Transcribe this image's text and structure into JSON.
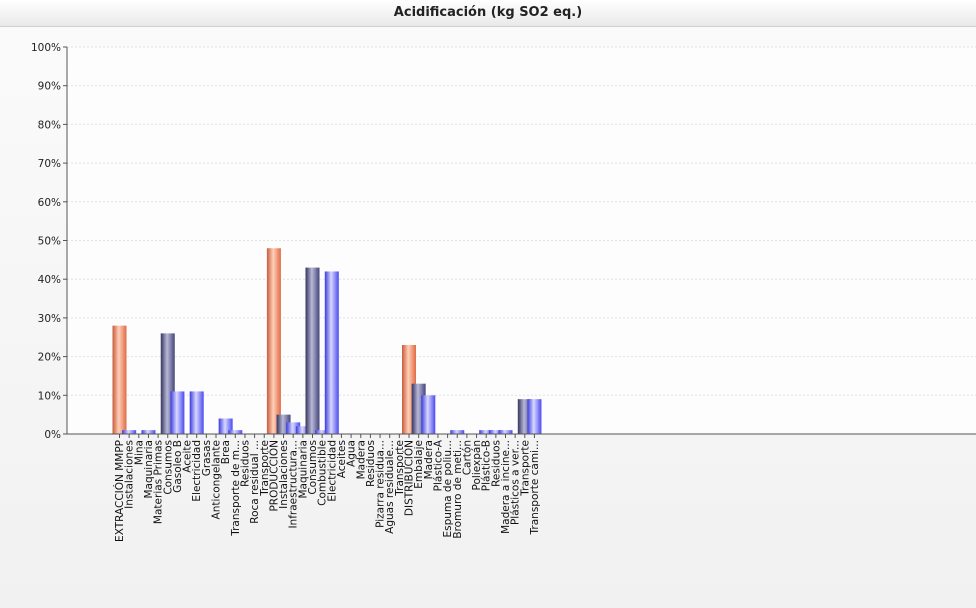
{
  "chart_data": {
    "type": "bar",
    "title": "Acidificación (kg SO2 eq.)",
    "xlabel": "",
    "ylabel": "",
    "ylim": [
      0,
      100
    ],
    "yticks": [
      "0%",
      "10%",
      "20%",
      "30%",
      "40%",
      "50%",
      "60%",
      "70%",
      "80%",
      "90%",
      "100%"
    ],
    "grid": true,
    "colors": {
      "phase": "#f08060",
      "process_dark": "#5a5a90",
      "process_blue": "#6a6af0"
    },
    "categories": [
      "EXTRACCIÓN MMPP",
      "Instalaciones",
      "Mina",
      "Maquinaria",
      "Materias Primas",
      "Consumos",
      "Gasoleo B",
      "Aceite",
      "Electricidad",
      "Grasas",
      "Anticongelante",
      "Brea",
      "Transporte de m...",
      "Residuos",
      "Roca residual ...",
      "Transporte",
      "PRODUCCIÓN",
      "Instalaciones",
      "Infraestructura...",
      "Maquinaria",
      "Consumos",
      "Combustible",
      "Electricidad",
      "Aceites",
      "Agua",
      "Madera",
      "Residuos",
      "Pizarra residua...",
      "Aguas residuale...",
      "Transporte",
      "DISTRIBUCIÓN",
      "Embalaje",
      "Madera",
      "Plástico-A",
      "Espuma de poliu...",
      "Bromuro de meti...",
      "Cartón",
      "Poliexpán",
      "Plástico-B",
      "Residuos",
      "Madera a incine...",
      "Plásticos a ver...",
      "Transporte",
      "Transporte cami..."
    ],
    "values": [
      28,
      1,
      0,
      1,
      0,
      26,
      11,
      0,
      11,
      0,
      0,
      4,
      1,
      0,
      0,
      0,
      48,
      5,
      3,
      2,
      43,
      1,
      42,
      0,
      0,
      0,
      0,
      0,
      0,
      0,
      23,
      13,
      10,
      0,
      0,
      1,
      0,
      0,
      1,
      1,
      1,
      0,
      9,
      9
    ],
    "series_style": [
      "phase",
      "blue",
      "blue",
      "blue",
      "dark",
      "dark",
      "blue",
      "blue",
      "blue",
      "blue",
      "blue",
      "blue",
      "blue",
      "blue",
      "blue",
      "blue",
      "phase",
      "dark",
      "blue",
      "blue",
      "dark",
      "blue",
      "blue",
      "blue",
      "blue",
      "blue",
      "blue",
      "blue",
      "blue",
      "blue",
      "phase",
      "dark",
      "blue",
      "blue",
      "blue",
      "blue",
      "blue",
      "blue",
      "blue",
      "blue",
      "blue",
      "blue",
      "dark",
      "blue"
    ]
  }
}
